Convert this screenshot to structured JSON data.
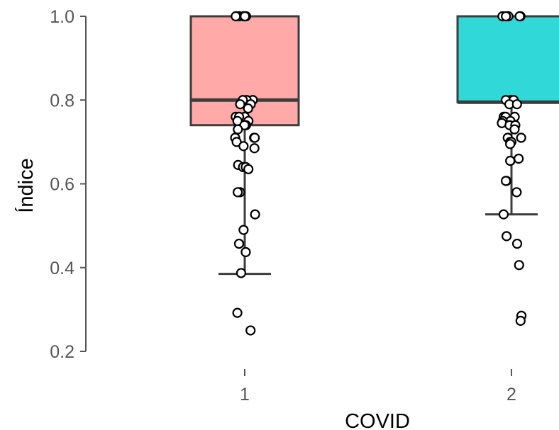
{
  "chart_data": {
    "type": "boxplot",
    "xlabel": "COVID",
    "ylabel": "Índice",
    "categories": [
      "1",
      "2"
    ],
    "ylim": [
      0.2,
      1.0
    ],
    "yticks": [
      "0.2",
      "0.4",
      "0.6",
      "0.8",
      "1.0"
    ],
    "colors": {
      "1": "#ffaaa8",
      "2": "#31d8d8"
    },
    "boxes": [
      {
        "category": "1",
        "min": 0.385,
        "q1": 0.74,
        "median": 0.8,
        "q3": 1.0,
        "max": 1.0
      },
      {
        "category": "2",
        "min": 0.527,
        "q1": 0.795,
        "median": 0.795,
        "q3": 1.0,
        "max": 1.0
      }
    ],
    "points": [
      {
        "category": "1",
        "values": [
          1.0,
          1.0,
          1.0,
          1.0,
          1.0,
          1.0,
          1.0,
          0.8,
          0.8,
          0.8,
          0.79,
          0.79,
          0.78,
          0.76,
          0.76,
          0.76,
          0.75,
          0.75,
          0.74,
          0.74,
          0.73,
          0.71,
          0.71,
          0.71,
          0.7,
          0.69,
          0.685,
          0.645,
          0.64,
          0.64,
          0.635,
          0.58,
          0.58,
          0.527,
          0.49,
          0.457,
          0.437,
          0.387,
          0.292,
          0.25
        ]
      },
      {
        "category": "2",
        "values": [
          1.0,
          1.0,
          1.0,
          1.0,
          1.0,
          1.0,
          0.8,
          0.8,
          0.8,
          0.79,
          0.79,
          0.76,
          0.76,
          0.76,
          0.75,
          0.75,
          0.745,
          0.74,
          0.74,
          0.73,
          0.71,
          0.71,
          0.7,
          0.7,
          0.695,
          0.66,
          0.655,
          0.655,
          0.607,
          0.607,
          0.58,
          0.527,
          0.475,
          0.457,
          0.406,
          0.285,
          0.273
        ]
      }
    ]
  }
}
